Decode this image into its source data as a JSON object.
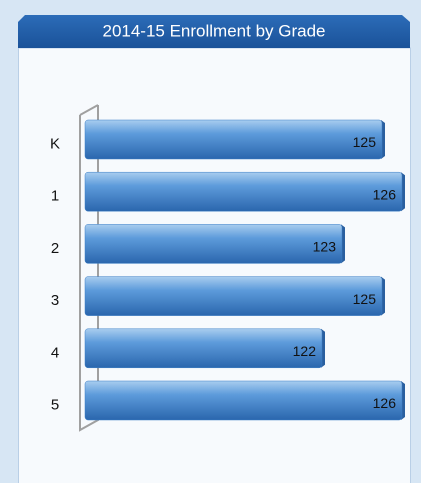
{
  "chart_data": {
    "type": "bar",
    "orientation": "horizontal",
    "title": "2014-15 Enrollment by Grade",
    "categories": [
      "K",
      "1",
      "2",
      "3",
      "4",
      "5"
    ],
    "values": [
      125,
      126,
      123,
      125,
      122,
      126
    ],
    "color": "#3d7fc6",
    "xlim": [
      110,
      126
    ]
  }
}
